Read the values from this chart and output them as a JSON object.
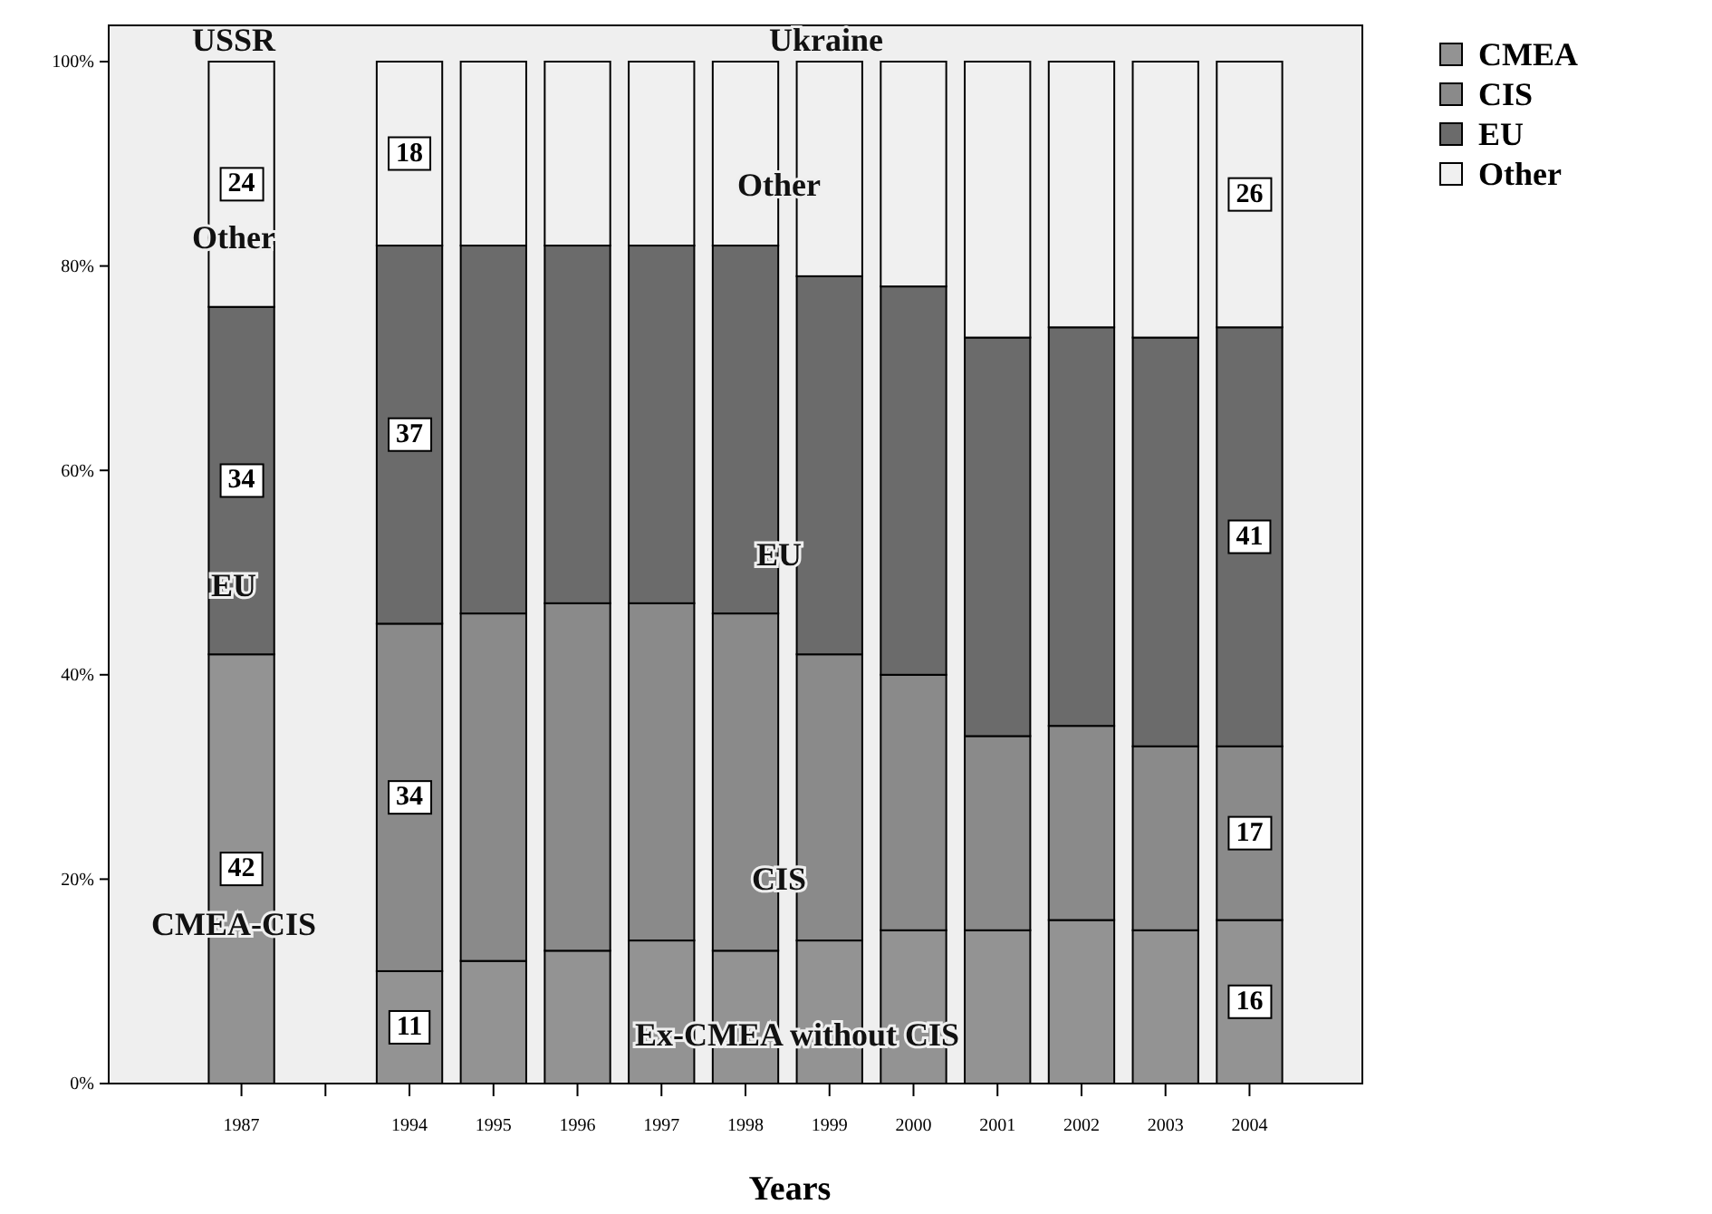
{
  "chart_data": {
    "type": "bar",
    "stacked": true,
    "xlabel": "Years",
    "categories": [
      "1987",
      null,
      "1994",
      "1995",
      "1996",
      "1997",
      "1998",
      "1999",
      "2000",
      "2001",
      "2002",
      "2003",
      "2004"
    ],
    "series": [
      {
        "name": "CMEA",
        "color": "#939393",
        "values": [
          42,
          null,
          11,
          12,
          13,
          14,
          13,
          14,
          15,
          15,
          16,
          15,
          16
        ],
        "value_labels": [
          "42",
          null,
          "11",
          null,
          null,
          null,
          null,
          null,
          null,
          null,
          null,
          null,
          "16"
        ]
      },
      {
        "name": "CIS",
        "color": "#8a8a8a",
        "values": [
          null,
          null,
          34,
          34,
          34,
          33,
          33,
          28,
          25,
          19,
          19,
          18,
          17
        ],
        "value_labels": [
          null,
          null,
          "34",
          null,
          null,
          null,
          null,
          null,
          null,
          null,
          null,
          null,
          "17"
        ]
      },
      {
        "name": "EU",
        "color": "#6b6b6b",
        "values": [
          34,
          null,
          37,
          36,
          35,
          35,
          36,
          37,
          38,
          39,
          39,
          40,
          41
        ],
        "value_labels": [
          "34",
          null,
          "37",
          null,
          null,
          null,
          null,
          null,
          null,
          null,
          null,
          null,
          "41"
        ]
      },
      {
        "name": "Other",
        "color": "#f0f0f0",
        "values": [
          24,
          null,
          18,
          18,
          18,
          18,
          18,
          21,
          22,
          27,
          26,
          27,
          26
        ],
        "value_labels": [
          "24",
          null,
          "18",
          null,
          null,
          null,
          null,
          null,
          null,
          null,
          null,
          null,
          "26"
        ]
      }
    ],
    "ylim": [
      0,
      100
    ],
    "yticks": [
      {
        "value": 0,
        "label": "0%"
      },
      {
        "value": 20,
        "label": "20%"
      },
      {
        "value": 40,
        "label": "40%"
      },
      {
        "value": 60,
        "label": "60%"
      },
      {
        "value": 80,
        "label": "80%"
      },
      {
        "value": 100,
        "label": "100%"
      }
    ],
    "grid": false,
    "legend": "right",
    "annotations": [
      "USSR",
      "Ukraine",
      "Other",
      "EU",
      "CMEA-CIS",
      "Other",
      "EU",
      "CIS",
      "Ex-CMEA without CIS"
    ]
  }
}
